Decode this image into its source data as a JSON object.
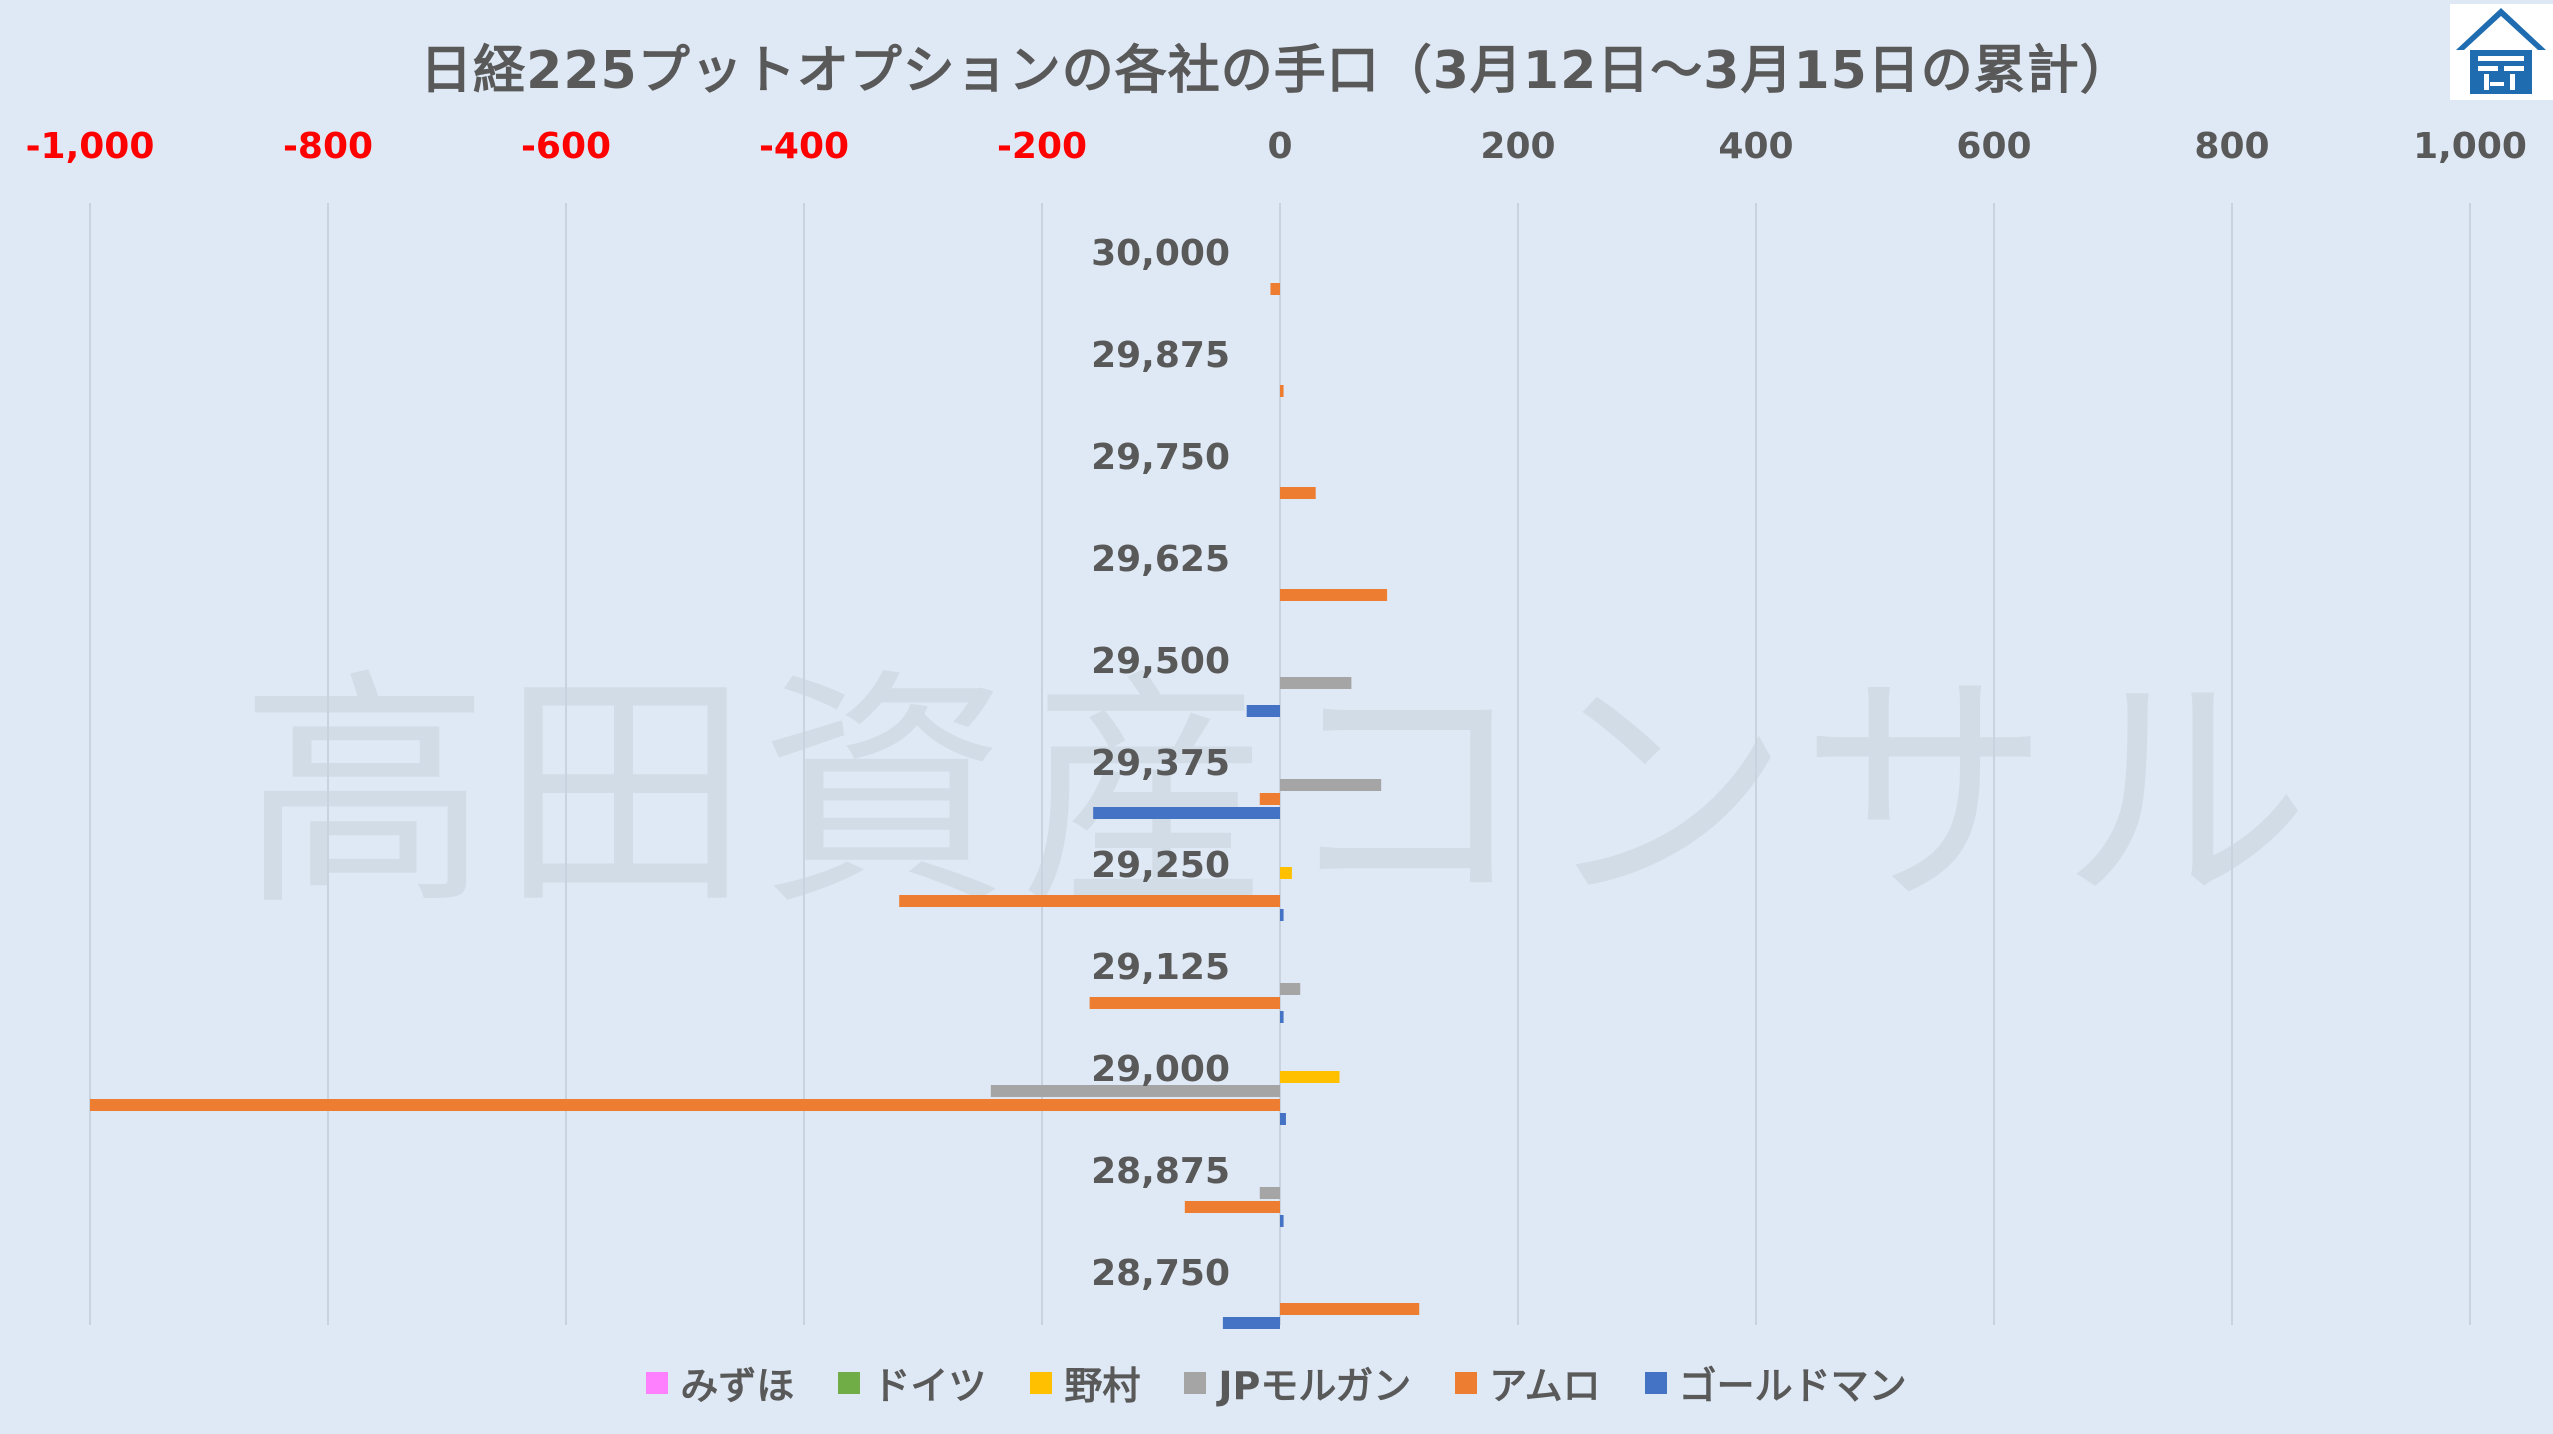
{
  "title": "日経225プットオプションの各社の手口（3月12日～3月15日の累計）",
  "watermark": "高田資産コンサル",
  "colors": {
    "background": "#dfe9f5",
    "negative_tick": "#ff0000",
    "positive_tick": "#595959",
    "grid": "#c9d3df",
    "logo": "#1f6db0"
  },
  "chart_data": {
    "type": "bar",
    "orientation": "horizontal",
    "xlim": [
      -1000,
      1000
    ],
    "x_ticks": [
      -1000,
      -800,
      -600,
      -400,
      -200,
      0,
      200,
      400,
      600,
      800,
      1000
    ],
    "x_tick_labels": [
      "-1,000",
      "-800",
      "-600",
      "-400",
      "-200",
      "0",
      "200",
      "400",
      "600",
      "800",
      "1,000"
    ],
    "grid": true,
    "legend_position": "bottom",
    "categories": [
      "30,000",
      "29,875",
      "29,750",
      "29,625",
      "29,500",
      "29,375",
      "29,250",
      "29,125",
      "29,000",
      "28,875",
      "28,750"
    ],
    "series": [
      {
        "name": "みずほ",
        "color": "#ff80ff",
        "values": [
          0,
          0,
          0,
          0,
          0,
          0,
          0,
          0,
          0,
          0,
          0
        ]
      },
      {
        "name": "ドイツ",
        "color": "#70ad47",
        "values": [
          0,
          0,
          0,
          0,
          0,
          0,
          0,
          0,
          0,
          0,
          0
        ]
      },
      {
        "name": "野村",
        "color": "#ffc000",
        "values": [
          0,
          0,
          0,
          0,
          0,
          0,
          10,
          0,
          50,
          0,
          0
        ]
      },
      {
        "name": "JPモルガン",
        "color": "#a5a5a5",
        "values": [
          0,
          0,
          0,
          0,
          60,
          85,
          0,
          17,
          -243,
          -17,
          0
        ]
      },
      {
        "name": "アムロ",
        "color": "#ed7d31",
        "values": [
          -8,
          3,
          30,
          90,
          0,
          -17,
          -320,
          -160,
          -1000,
          -80,
          117
        ]
      },
      {
        "name": "ゴールドマン",
        "color": "#4472c4",
        "values": [
          0,
          0,
          0,
          0,
          -28,
          -157,
          3,
          3,
          5,
          3,
          -48
        ]
      }
    ]
  }
}
